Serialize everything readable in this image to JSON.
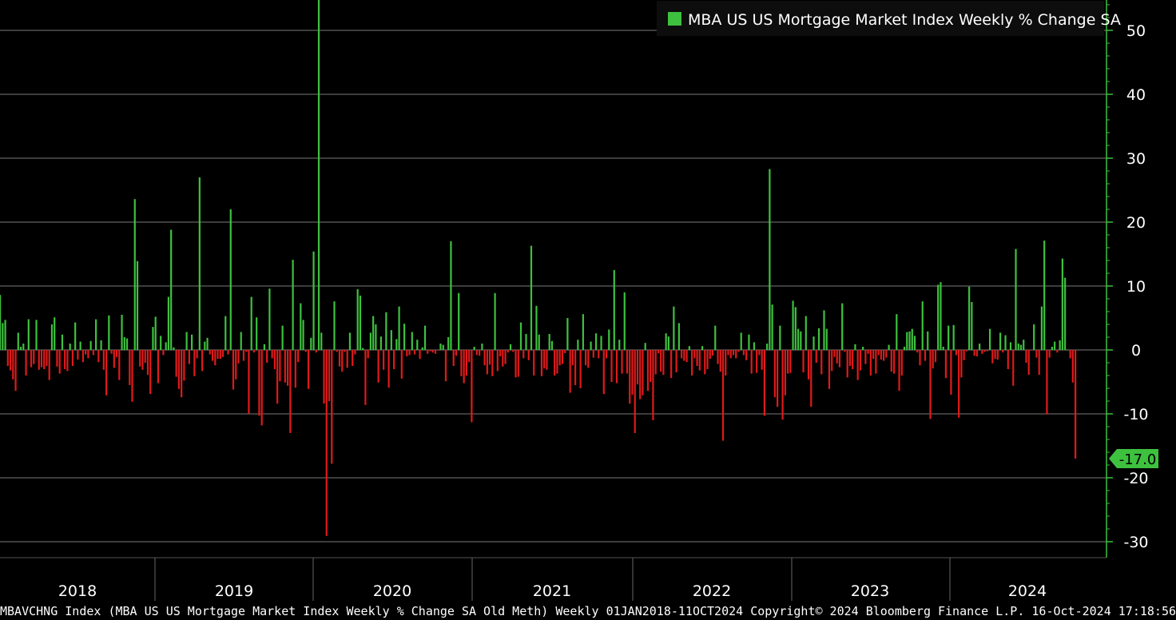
{
  "footer_text": "MBAVCHNG Index (MBA US US Mortgage Market Index Weekly % Change SA Old Meth)  Weekly 01JAN2018-11OCT2024 Copyright© 2024 Bloomberg Finance L.P.  16-Oct-2024 17:18:56",
  "colors": {
    "positive": "#3ec13e",
    "negative": "#e01a1a",
    "axis": "#3ec13e",
    "grid": "#7a7a7a",
    "background": "#000000"
  },
  "chart_data": {
    "type": "bar",
    "title": "",
    "legend": {
      "label": "MBA US US Mortgage Market Index Weekly % Change SA",
      "placement": "top-right"
    },
    "ylim": [
      -32,
      56
    ],
    "y_ticks": [
      50,
      40,
      30,
      20,
      10,
      0,
      -10,
      -20,
      -30
    ],
    "y_tick_labels": [
      "50",
      "40",
      "30",
      "20",
      "10",
      "0",
      "-10",
      "-20",
      "-30"
    ],
    "x_labels": [
      "2018",
      "2019",
      "2020",
      "2021",
      "2022",
      "2023",
      "2024"
    ],
    "last_value_label": "-17.0",
    "grid": true,
    "values": [
      8.6,
      4.2,
      4.7,
      -2.5,
      -3.2,
      -4.6,
      -6.4,
      2.7,
      0.5,
      1.0,
      -4.0,
      4.8,
      -2.7,
      -2.2,
      4.7,
      -3.1,
      -2.7,
      -3.0,
      -2.5,
      -4.7,
      4.0,
      5.1,
      -2.6,
      -3.7,
      2.4,
      -3.0,
      -3.3,
      1.0,
      -2.5,
      4.3,
      -1.5,
      1.3,
      -1.9,
      -0.7,
      -1.3,
      1.4,
      -0.8,
      4.8,
      -1.9,
      1.5,
      -3.1,
      -7.1,
      5.4,
      -0.6,
      -2.8,
      -1.1,
      -4.7,
      5.5,
      2.0,
      1.8,
      -5.5,
      -8.1,
      23.6,
      13.9,
      -2.6,
      -3.1,
      -2.0,
      -3.9,
      -6.9,
      3.6,
      5.2,
      -5.2,
      2.2,
      -0.8,
      1.2,
      8.3,
      18.8,
      0.4,
      -4.2,
      -6.1,
      -7.4,
      -4.8,
      2.8,
      -2.2,
      2.4,
      -4.1,
      -1.3,
      27.0,
      -3.3,
      1.3,
      1.9,
      -0.7,
      -1.7,
      -2.4,
      -1.4,
      -1.4,
      -1.1,
      5.3,
      -0.7,
      22.0,
      -6.2,
      -4.6,
      -2.1,
      2.8,
      -1.7,
      -0.3,
      -10.0,
      8.3,
      -0.4,
      5.1,
      -10.3,
      -11.8,
      0.9,
      -2.0,
      9.6,
      -1.3,
      -3.0,
      -8.4,
      -4.9,
      3.8,
      -5.1,
      -5.6,
      -13.0,
      14.1,
      -5.9,
      -1.9,
      7.3,
      4.7,
      -0.3,
      -6.1,
      1.9,
      15.4,
      -0.4,
      55.0,
      2.7,
      -8.4,
      -29.1,
      -8.0,
      -17.8,
      7.6,
      -0.3,
      -2.6,
      -3.4,
      -0.3,
      -2.8,
      2.7,
      -2.5,
      -0.7,
      9.5,
      8.5,
      0.3,
      -8.6,
      -1.3,
      2.7,
      5.3,
      4.0,
      -5.1,
      2.1,
      -3.1,
      5.9,
      -5.9,
      3.1,
      -3.0,
      1.7,
      6.8,
      -4.5,
      4.1,
      -1.0,
      -0.8,
      2.8,
      -0.7,
      1.6,
      -1.4,
      0.4,
      3.8,
      -0.6,
      -0.2,
      -0.4,
      -0.6,
      -0.1,
      1.0,
      0.8,
      -4.9,
      2.0,
      17.0,
      -2.5,
      -0.9,
      8.9,
      -4.1,
      -5.2,
      -4.0,
      -1.9,
      -11.3,
      0.5,
      -0.8,
      -0.9,
      1.0,
      -2.4,
      -3.8,
      -2.3,
      -4.1,
      8.9,
      -3.3,
      -1.0,
      -2.6,
      -2.2,
      -0.4,
      0.9,
      -0.3,
      -4.3,
      -4.2,
      4.3,
      -1.3,
      2.5,
      -1.6,
      16.3,
      -4.0,
      6.9,
      2.4,
      -4.1,
      -2.9,
      -3.1,
      2.5,
      1.4,
      -4.0,
      -3.7,
      -2.4,
      -2.2,
      -0.5,
      5.0,
      -6.7,
      -2.4,
      -5.5,
      1.6,
      -6.0,
      5.6,
      -2.4,
      -2.8,
      1.3,
      -1.2,
      2.6,
      -1.3,
      2.2,
      -6.9,
      -1.3,
      3.2,
      -5.0,
      12.5,
      -5.2,
      1.6,
      -3.7,
      9.0,
      -3.7,
      -8.4,
      -7.0,
      -13.0,
      -5.4,
      -7.7,
      -7.1,
      1.1,
      -6.4,
      -5.0,
      -11.0,
      -3.8,
      -0.5,
      -3.4,
      -3.9,
      2.6,
      2.1,
      -4.4,
      6.8,
      -3.5,
      4.2,
      -1.3,
      -1.7,
      -1.9,
      0.6,
      -4.0,
      -1.3,
      -2.5,
      -3.2,
      0.6,
      -3.8,
      -3.0,
      -1.4,
      -0.9,
      3.8,
      -2.2,
      -3.4,
      -14.2,
      -4.0,
      -0.8,
      -1.3,
      -0.8,
      -1.3,
      -0.3,
      2.7,
      -0.8,
      -1.6,
      2.4,
      -3.7,
      1.2,
      -3.6,
      -0.8,
      -3.1,
      -10.3,
      1.0,
      28.3,
      7.1,
      -7.4,
      -8.9,
      3.8,
      -10.9,
      -7.1,
      -3.7,
      -3.6,
      7.7,
      6.7,
      3.3,
      2.9,
      -3.5,
      5.3,
      -4.6,
      -8.9,
      2.1,
      -2.0,
      3.4,
      -3.8,
      6.2,
      3.3,
      -6.1,
      -3.3,
      -1.1,
      -2.1,
      -2.7,
      7.3,
      -0.3,
      -4.3,
      -2.5,
      -3.0,
      0.9,
      -4.7,
      -3.2,
      0.5,
      -2.2,
      -0.6,
      -4.0,
      -1.4,
      -3.7,
      -0.8,
      -1.5,
      -1.7,
      -1.2,
      0.8,
      -3.4,
      -3.7,
      5.6,
      -6.4,
      -4.0,
      0.5,
      2.8,
      2.9,
      3.3,
      2.2,
      -0.4,
      -2.4,
      7.6,
      -1.7,
      2.9,
      -10.8,
      -2.9,
      -1.9,
      10.2,
      10.6,
      0.5,
      -4.4,
      3.8,
      -7.0,
      3.9,
      -0.8,
      -10.6,
      -4.3,
      -1.6,
      -0.2,
      9.9,
      7.5,
      -0.9,
      -1.0,
      1.0,
      -0.6,
      -0.3,
      -0.2,
      3.3,
      -2.1,
      -1.4,
      -1.5,
      2.7,
      -0.4,
      2.3,
      -3.0,
      1.2,
      -5.6,
      15.8,
      1.0,
      0.8,
      1.6,
      -2.0,
      -3.9,
      -0.1,
      4.0,
      -1.2,
      -3.9,
      6.8,
      17.1,
      -10.1,
      -1.2,
      0.5,
      1.3,
      -0.4,
      1.5,
      14.3,
      11.3,
      0.0,
      -1.3,
      -5.1,
      -17.0
    ]
  }
}
